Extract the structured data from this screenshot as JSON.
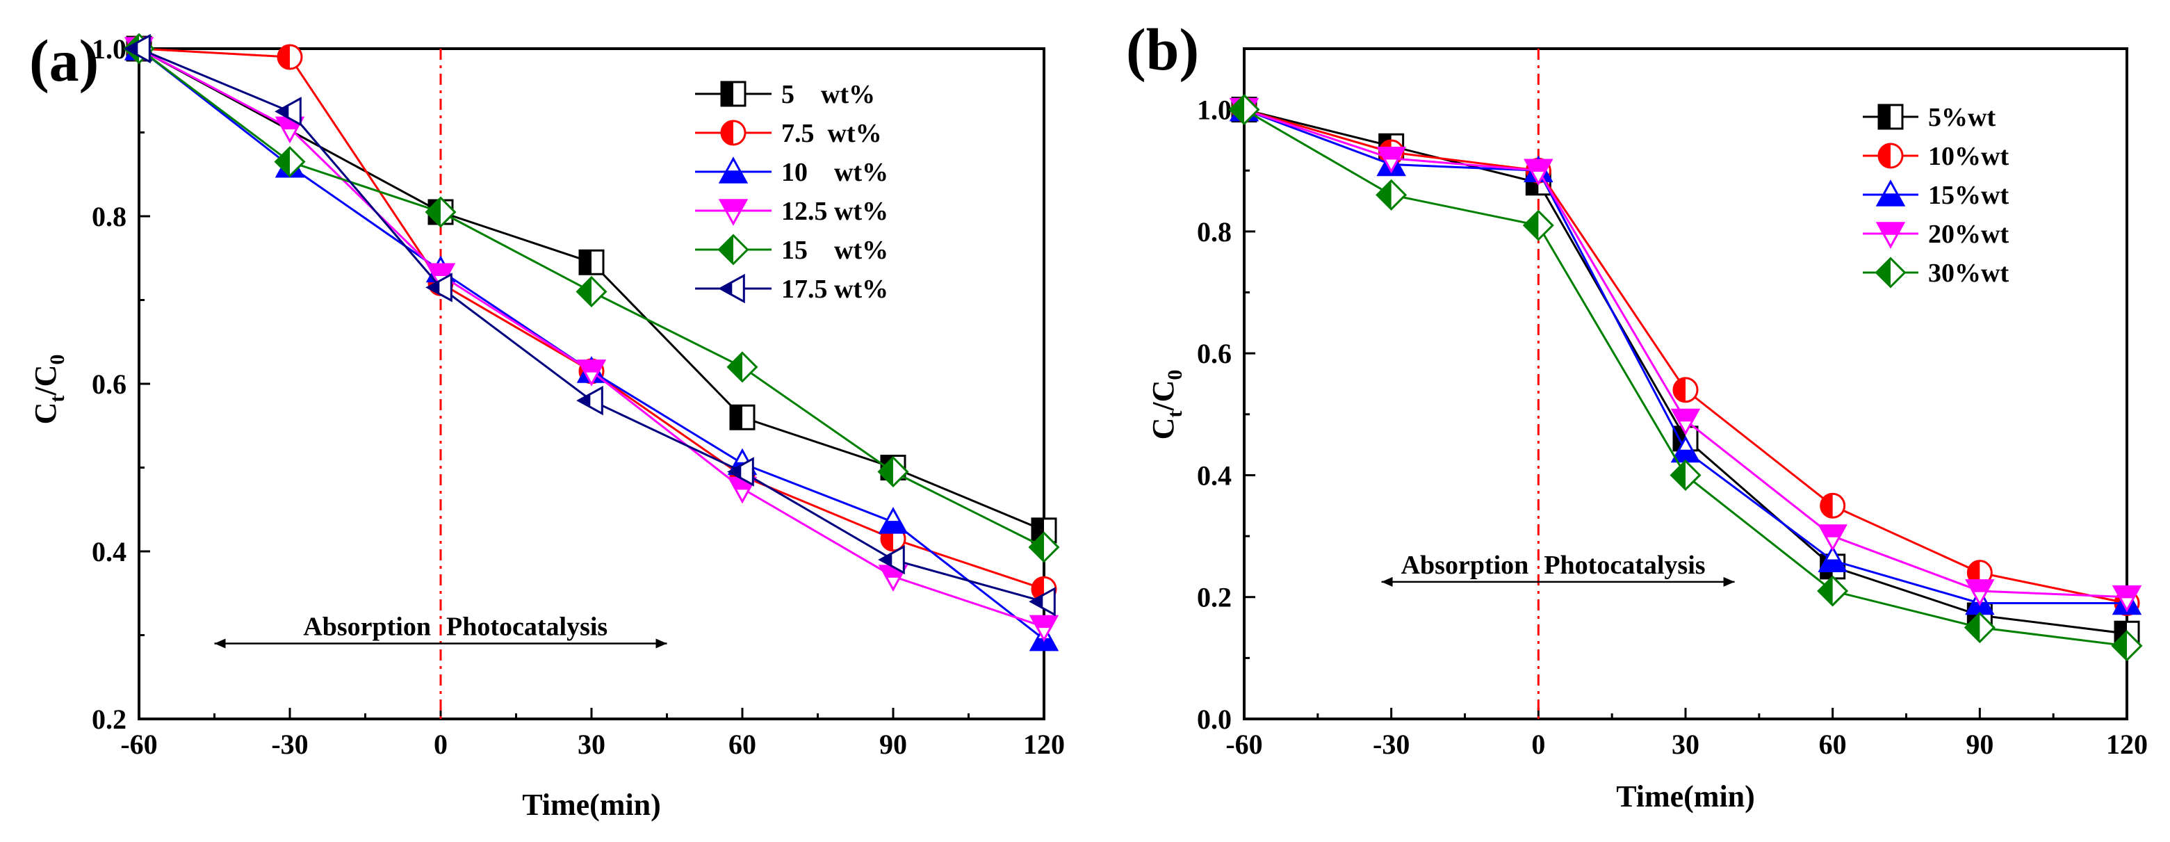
{
  "chart_data": [
    {
      "type": "line",
      "panel_label": "(a)",
      "xlabel": "Time(min)",
      "ylabel_main": "C",
      "ylabel_sub1": "t",
      "ylabel_mid": "/C",
      "ylabel_sub2": "0",
      "xlim": [
        -60,
        120
      ],
      "ylim": [
        0.2,
        1.0
      ],
      "x_ticks": [
        -60,
        -30,
        0,
        30,
        60,
        90,
        120
      ],
      "x_tick_labels": [
        "-60",
        "-30",
        "0",
        "30",
        "60",
        "90",
        "120"
      ],
      "y_ticks": [
        0.2,
        0.4,
        0.6,
        0.8,
        1.0
      ],
      "y_tick_labels": [
        "0.2",
        "0.4",
        "0.6",
        "0.8",
        "1.0"
      ],
      "legend_position": "top-right",
      "x": [
        -60,
        -30,
        0,
        30,
        60,
        90,
        120
      ],
      "divider_x": 0,
      "annotation": {
        "left": "Absorption",
        "right": "Photocatalysis",
        "y": 0.29,
        "from": -45,
        "to": 45
      },
      "series": [
        {
          "name": "5    wt%",
          "color": "#000000",
          "marker": "square",
          "values": [
            1.0,
            null,
            0.805,
            0.745,
            0.56,
            0.5,
            0.425
          ]
        },
        {
          "name": "7.5  wt%",
          "color": "#ff0000",
          "marker": "circle",
          "values": [
            1.0,
            0.99,
            0.72,
            0.615,
            0.49,
            0.415,
            0.355
          ]
        },
        {
          "name": "10    wt%",
          "color": "#0000ff",
          "marker": "triangle-up",
          "values": [
            1.0,
            0.86,
            0.735,
            0.615,
            0.505,
            0.435,
            0.295
          ]
        },
        {
          "name": "12.5 wt%",
          "color": "#ff00ff",
          "marker": "triangle-down",
          "values": [
            1.0,
            0.905,
            0.73,
            0.615,
            0.475,
            0.37,
            0.31
          ]
        },
        {
          "name": "15    wt%",
          "color": "#008000",
          "marker": "diamond",
          "values": [
            1.0,
            0.865,
            0.805,
            0.71,
            0.62,
            0.495,
            0.405
          ]
        },
        {
          "name": "17.5 wt%",
          "color": "#000080",
          "marker": "triangle-left",
          "values": [
            1.0,
            0.925,
            0.715,
            0.58,
            0.495,
            0.39,
            0.34
          ]
        }
      ]
    },
    {
      "type": "line",
      "panel_label": "(b)",
      "xlabel": "Time(min)",
      "ylabel_main": "C",
      "ylabel_sub1": "t",
      "ylabel_mid": "/C",
      "ylabel_sub2": "0",
      "xlim": [
        -60,
        120
      ],
      "ylim": [
        0.0,
        1.1
      ],
      "x_ticks": [
        -60,
        -30,
        0,
        30,
        60,
        90,
        120
      ],
      "x_tick_labels": [
        "-60",
        "-30",
        "0",
        "30",
        "60",
        "90",
        "120"
      ],
      "y_ticks": [
        0.0,
        0.2,
        0.4,
        0.6,
        0.8,
        1.0
      ],
      "y_tick_labels": [
        "0.0",
        "0.2",
        "0.4",
        "0.6",
        "0.8",
        "1.0"
      ],
      "legend_position": "top-right",
      "x": [
        -60,
        -30,
        0,
        30,
        60,
        90,
        120
      ],
      "divider_x": 0,
      "annotation": {
        "left": "Absorption",
        "right": "Photocatalysis",
        "y": 0.225,
        "from": -32,
        "to": 40
      },
      "series": [
        {
          "name": "5%wt",
          "color": "#000000",
          "marker": "square",
          "values": [
            1.0,
            0.94,
            0.88,
            0.46,
            0.25,
            0.17,
            0.14
          ]
        },
        {
          "name": "10%wt",
          "color": "#ff0000",
          "marker": "circle",
          "values": [
            1.0,
            0.93,
            0.9,
            0.54,
            0.35,
            0.24,
            0.19
          ]
        },
        {
          "name": "15%wt",
          "color": "#0000ff",
          "marker": "triangle-up",
          "values": [
            1.0,
            0.91,
            0.9,
            0.44,
            0.26,
            0.19,
            0.19
          ]
        },
        {
          "name": "20%wt",
          "color": "#ff00ff",
          "marker": "triangle-down",
          "values": [
            1.0,
            0.92,
            0.9,
            0.49,
            0.3,
            0.21,
            0.2
          ]
        },
        {
          "name": "30%wt",
          "color": "#008000",
          "marker": "diamond",
          "values": [
            1.0,
            0.86,
            0.81,
            0.4,
            0.21,
            0.15,
            0.12
          ]
        }
      ]
    }
  ]
}
